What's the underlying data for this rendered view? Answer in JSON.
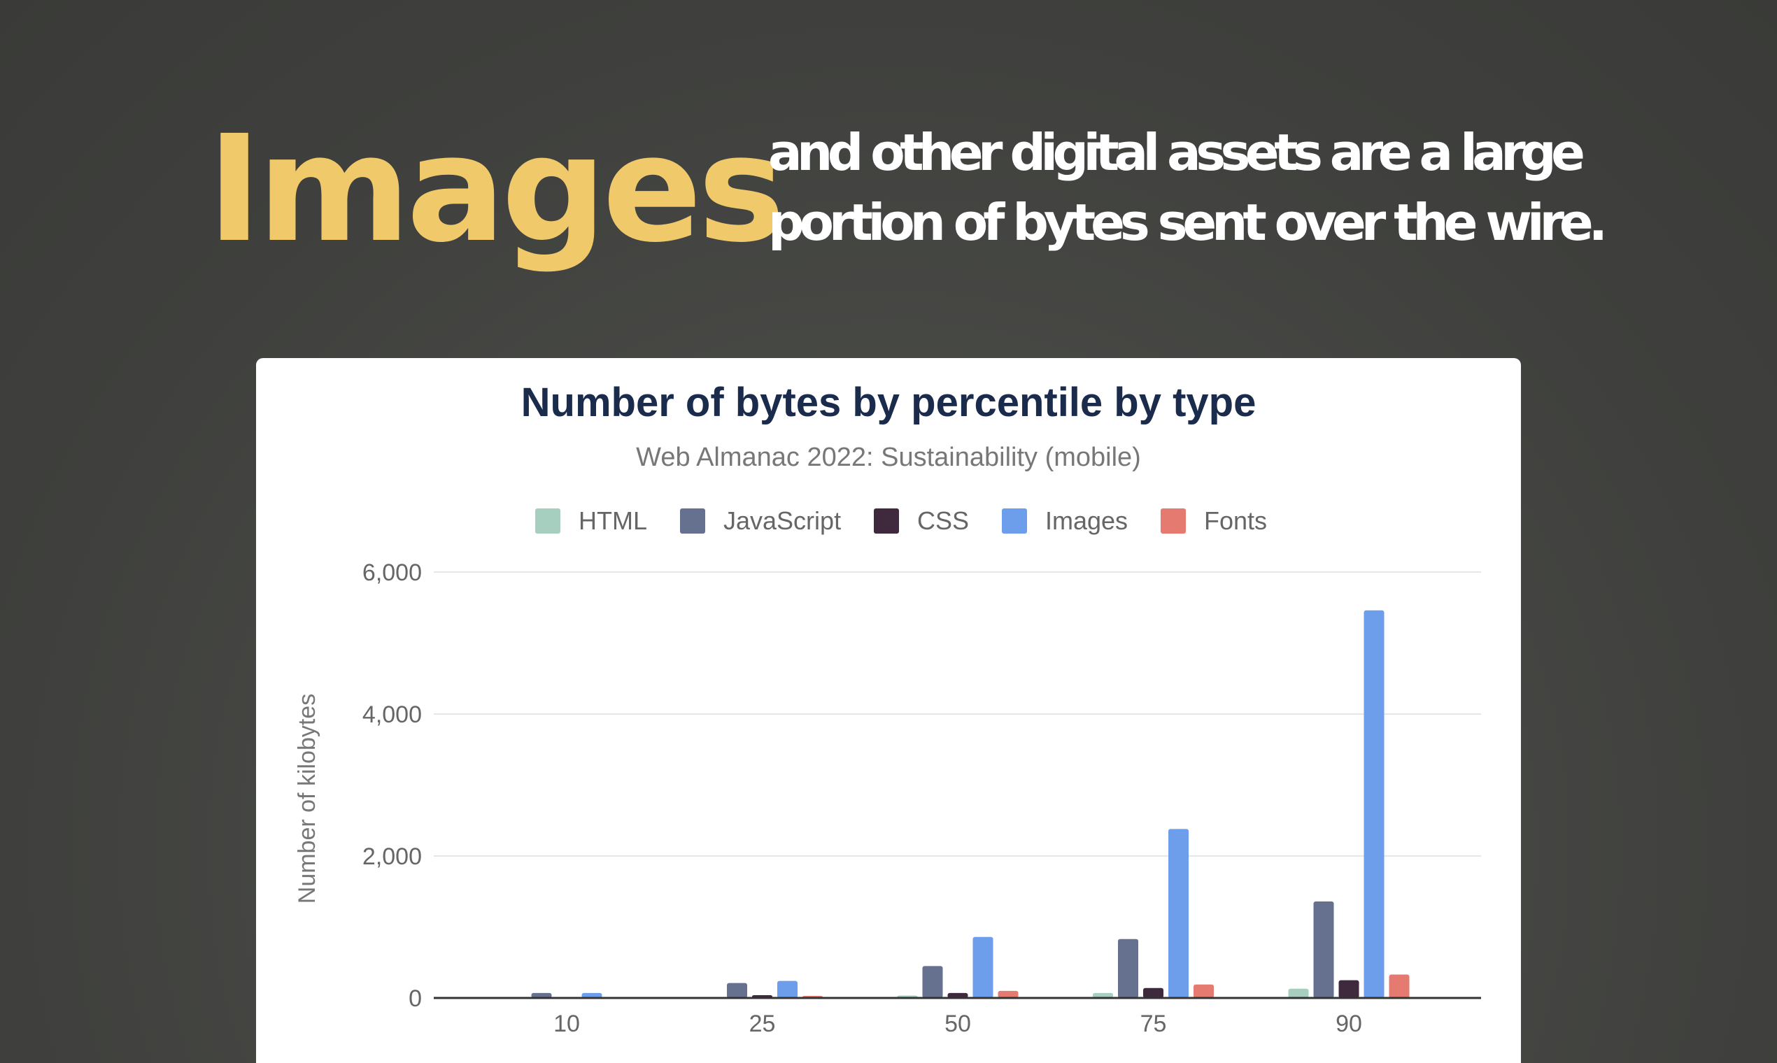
{
  "headline": {
    "word": "Images",
    "lines": [
      "and other digital assets are a large",
      "portion of bytes sent over the wire."
    ]
  },
  "chart_data": {
    "type": "bar",
    "title": "Number of bytes by percentile by type",
    "subtitle": "Web Almanac 2022: Sustainability (mobile)",
    "y_label": "Number of kilobytes",
    "categories": [
      "10",
      "25",
      "50",
      "75",
      "90"
    ],
    "series": [
      {
        "name": "HTML",
        "color": "#a6cfbf",
        "values": [
          5,
          15,
          35,
          70,
          130
        ]
      },
      {
        "name": "JavaScript",
        "color": "#65718f",
        "values": [
          70,
          210,
          450,
          830,
          1360
        ]
      },
      {
        "name": "CSS",
        "color": "#3f2a3d",
        "values": [
          10,
          40,
          70,
          140,
          250
        ]
      },
      {
        "name": "Images",
        "color": "#6c9eeb",
        "values": [
          70,
          240,
          860,
          2380,
          5460
        ]
      },
      {
        "name": "Fonts",
        "color": "#e57a70",
        "values": [
          0,
          30,
          100,
          190,
          330
        ]
      }
    ],
    "ylim": [
      0,
      6000
    ],
    "yticks": [
      0,
      {
        "value": 2000,
        "label": "2,000"
      },
      {
        "value": 4000,
        "label": "4,000"
      },
      {
        "value": 6000,
        "label": "6,000"
      }
    ],
    "grid": true,
    "legend": "top"
  }
}
